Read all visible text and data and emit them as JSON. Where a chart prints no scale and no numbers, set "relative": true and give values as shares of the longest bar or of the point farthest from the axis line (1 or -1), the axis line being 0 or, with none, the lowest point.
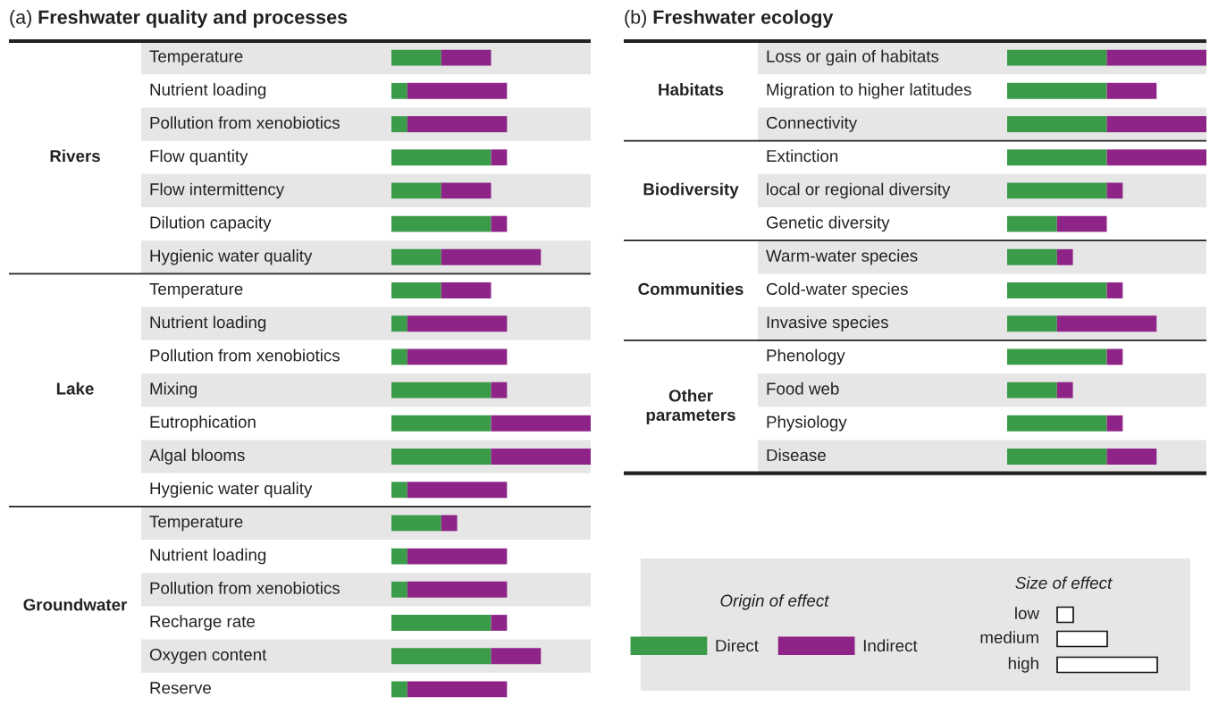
{
  "chart_data": [
    {
      "type": "bar",
      "orientation": "horizontal",
      "stacked": true,
      "relative": true,
      "title": "(a) Freshwater quality and processes",
      "categories": [
        "Temperature",
        "Nutrient loading",
        "Pollution from xenobiotics",
        "Flow quantity",
        "Flow intermittency",
        "Dilution capacity",
        "Hygienic water quality",
        "Temperature",
        "Nutrient loading",
        "Pollution from xenobiotics",
        "Mixing",
        "Eutrophication",
        "Algal blooms",
        "Hygienic water quality",
        "Temperature",
        "Nutrient loading",
        "Pollution from xenobiotics",
        "Recharge rate",
        "Oxygen content",
        "Reserve"
      ],
      "series": [
        {
          "color": "#3a9b48",
          "values": [
            0.25,
            0.08,
            0.08,
            0.5,
            0.25,
            0.5,
            0.25,
            0.25,
            0.08,
            0.08,
            0.5,
            0.5,
            0.5,
            0.08,
            0.25,
            0.08,
            0.08,
            0.5,
            0.5,
            0.08
          ]
        },
        {
          "color": "#8e2487",
          "values": [
            0.25,
            0.5,
            0.5,
            0.08,
            0.25,
            0.08,
            0.5,
            0.25,
            0.5,
            0.5,
            0.08,
            0.5,
            0.5,
            0.5,
            0.08,
            0.5,
            0.5,
            0.08,
            0.25,
            0.5
          ]
        }
      ],
      "annotations": [
        "Rivers",
        "Lake",
        "Groundwater"
      ]
    },
    {
      "type": "bar",
      "orientation": "horizontal",
      "stacked": true,
      "relative": true,
      "title": "(b) Freshwater ecology",
      "categories": [
        "Loss or gain of habitats",
        "Migration to higher latitudes",
        "Connectivity",
        "Extinction",
        "local or regional diversity",
        "Genetic diversity",
        "Warm-water species",
        "Cold-water species",
        "Invasive species",
        "Phenology",
        "Food web",
        "Physiology",
        "Disease"
      ],
      "series": [
        {
          "name": "Direct",
          "color": "#3a9b48",
          "values": [
            0.5,
            0.5,
            0.5,
            0.5,
            0.5,
            0.25,
            0.25,
            0.5,
            0.25,
            0.5,
            0.25,
            0.5,
            0.5
          ]
        },
        {
          "name": "Indirect",
          "color": "#8e2487",
          "values": [
            0.5,
            0.25,
            0.5,
            0.5,
            0.08,
            0.25,
            0.08,
            0.08,
            0.5,
            0.08,
            0.08,
            0.08,
            0.25
          ]
        }
      ],
      "legend": "bottom left",
      "legend_title": "Origin of effect",
      "annotations": [
        "Habitats",
        "Biodiversity",
        "Communities",
        "Other\nparameters",
        "Size of effect",
        "low",
        "medium",
        "high"
      ]
    }
  ]
}
